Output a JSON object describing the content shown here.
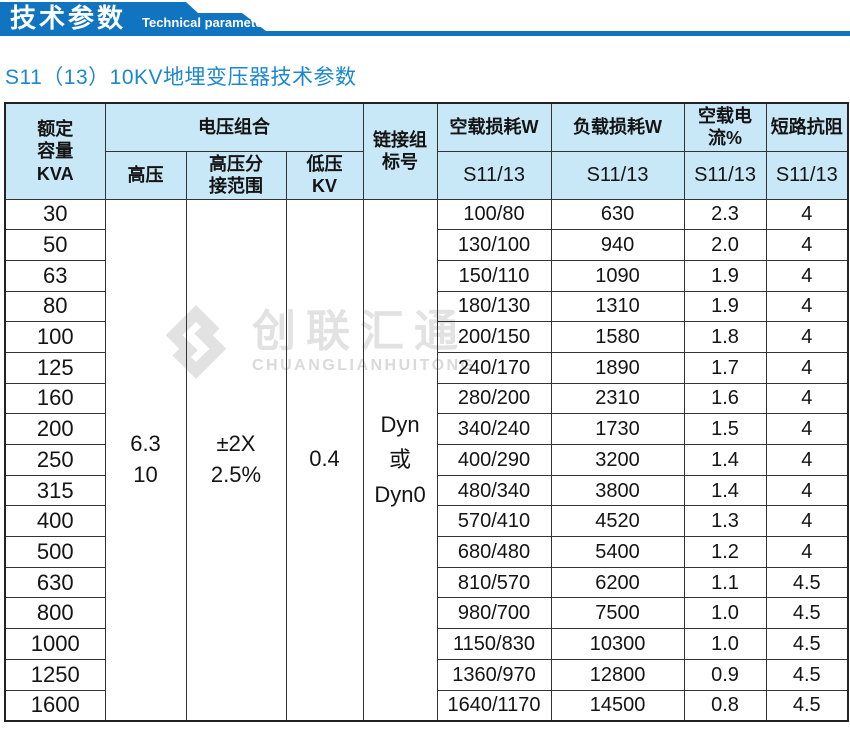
{
  "banner": {
    "title_cn": "技术参数",
    "title_en": "Technical parameter"
  },
  "page_title": "S11（13）10KV地埋变压器技术参数",
  "watermark": {
    "cn": "创联汇通",
    "en": "CHUANGLIANHUITONG"
  },
  "colors": {
    "banner_blue": "#1174c0",
    "title_blue": "#1c87d0",
    "header_bg": "#c9e8f7",
    "border": "#333333",
    "watermark_gray": "#e2e2e2"
  },
  "table": {
    "header": {
      "capacity": "额定\n容量\nKVA",
      "voltage_group": "电压组合",
      "hv": "高压",
      "hv_tap": "高压分\n接范围",
      "lv": "低压\nKV",
      "vector_group": "链接组\n标号",
      "no_load_loss": "空载损耗W",
      "load_loss": "负载损耗W",
      "no_load_current": "空载电流%",
      "impedance": "短路抗阻",
      "sub_model": "S11/13"
    },
    "merged": {
      "hv": "6.3\n10",
      "hv_tap": "±2X\n2.5%",
      "lv": "0.4",
      "vector": "Dyn\n或\nDyn0"
    },
    "rows": [
      {
        "kva": "30",
        "no_load_loss": "100/80",
        "load_loss": "630",
        "no_load_current": "2.3",
        "impedance": "4"
      },
      {
        "kva": "50",
        "no_load_loss": "130/100",
        "load_loss": "940",
        "no_load_current": "2.0",
        "impedance": "4"
      },
      {
        "kva": "63",
        "no_load_loss": "150/110",
        "load_loss": "1090",
        "no_load_current": "1.9",
        "impedance": "4"
      },
      {
        "kva": "80",
        "no_load_loss": "180/130",
        "load_loss": "1310",
        "no_load_current": "1.9",
        "impedance": "4"
      },
      {
        "kva": "100",
        "no_load_loss": "200/150",
        "load_loss": "1580",
        "no_load_current": "1.8",
        "impedance": "4"
      },
      {
        "kva": "125",
        "no_load_loss": "240/170",
        "load_loss": "1890",
        "no_load_current": "1.7",
        "impedance": "4"
      },
      {
        "kva": "160",
        "no_load_loss": "280/200",
        "load_loss": "2310",
        "no_load_current": "1.6",
        "impedance": "4"
      },
      {
        "kva": "200",
        "no_load_loss": "340/240",
        "load_loss": "1730",
        "no_load_current": "1.5",
        "impedance": "4"
      },
      {
        "kva": "250",
        "no_load_loss": "400/290",
        "load_loss": "3200",
        "no_load_current": "1.4",
        "impedance": "4"
      },
      {
        "kva": "315",
        "no_load_loss": "480/340",
        "load_loss": "3800",
        "no_load_current": "1.4",
        "impedance": "4"
      },
      {
        "kva": "400",
        "no_load_loss": "570/410",
        "load_loss": "4520",
        "no_load_current": "1.3",
        "impedance": "4"
      },
      {
        "kva": "500",
        "no_load_loss": "680/480",
        "load_loss": "5400",
        "no_load_current": "1.2",
        "impedance": "4"
      },
      {
        "kva": "630",
        "no_load_loss": "810/570",
        "load_loss": "6200",
        "no_load_current": "1.1",
        "impedance": "4.5"
      },
      {
        "kva": "800",
        "no_load_loss": "980/700",
        "load_loss": "7500",
        "no_load_current": "1.0",
        "impedance": "4.5"
      },
      {
        "kva": "1000",
        "no_load_loss": "1150/830",
        "load_loss": "10300",
        "no_load_current": "1.0",
        "impedance": "4.5"
      },
      {
        "kva": "1250",
        "no_load_loss": "1360/970",
        "load_loss": "12800",
        "no_load_current": "0.9",
        "impedance": "4.5"
      },
      {
        "kva": "1600",
        "no_load_loss": "1640/1170",
        "load_loss": "14500",
        "no_load_current": "0.8",
        "impedance": "4.5"
      }
    ]
  }
}
